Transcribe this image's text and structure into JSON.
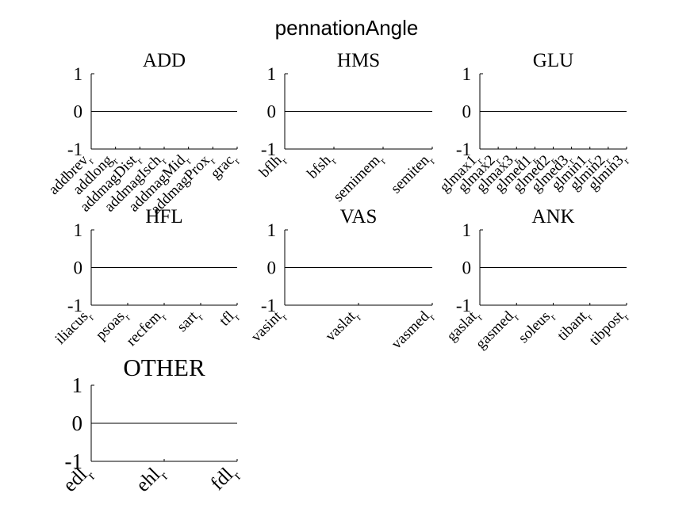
{
  "figure_title": "pennationAngle",
  "chart_data": [
    {
      "type": "line",
      "title": "ADD",
      "categories": [
        "addbrev_r",
        "addlong_r",
        "addmagDist_r",
        "addmagIsch_r",
        "addmagMid_r",
        "addmagProx_r",
        "grac_r"
      ],
      "values": [
        0,
        0,
        0,
        0,
        0,
        0,
        0
      ],
      "ylim": [
        -1,
        1
      ],
      "yticks": [
        "1",
        "0",
        "-1"
      ]
    },
    {
      "type": "line",
      "title": "HMS",
      "categories": [
        "bflh_r",
        "bfsh_r",
        "semimem_r",
        "semiten_r"
      ],
      "values": [
        0,
        0,
        0,
        0
      ],
      "ylim": [
        -1,
        1
      ],
      "yticks": [
        "1",
        "0",
        "-1"
      ]
    },
    {
      "type": "line",
      "title": "GLU",
      "categories": [
        "glmax1_r",
        "glmax2_r",
        "glmax3_r",
        "glmed1_r",
        "glmed2_r",
        "glmed3_r",
        "glmin1_r",
        "glmin2_r",
        "glmin3_r"
      ],
      "values": [
        0,
        0,
        0,
        0,
        0,
        0,
        0,
        0,
        0
      ],
      "ylim": [
        -1,
        1
      ],
      "yticks": [
        "1",
        "0",
        "-1"
      ]
    },
    {
      "type": "line",
      "title": "HFL",
      "categories": [
        "iliacus_r",
        "psoas_r",
        "recfem_r",
        "sart_r",
        "tfl_r"
      ],
      "values": [
        0,
        0,
        0,
        0,
        0
      ],
      "ylim": [
        -1,
        1
      ],
      "yticks": [
        "1",
        "0",
        "-1"
      ]
    },
    {
      "type": "line",
      "title": "VAS",
      "categories": [
        "vasint_r",
        "vaslat_r",
        "vasmed_r"
      ],
      "values": [
        0,
        0,
        0
      ],
      "ylim": [
        -1,
        1
      ],
      "yticks": [
        "1",
        "0",
        "-1"
      ]
    },
    {
      "type": "line",
      "title": "ANK",
      "categories": [
        "gaslat_r",
        "gasmed_r",
        "soleus_r",
        "tibant_r",
        "tibpost_r"
      ],
      "values": [
        0,
        0,
        0,
        0,
        0
      ],
      "ylim": [
        -1,
        1
      ],
      "yticks": [
        "1",
        "0",
        "-1"
      ]
    },
    {
      "type": "line",
      "title": "OTHER",
      "categories": [
        "edl_r",
        "ehl_r",
        "fdl_r"
      ],
      "values": [
        0,
        0,
        0
      ],
      "ylim": [
        -1,
        1
      ],
      "yticks": [
        "1",
        "0",
        "-1"
      ]
    }
  ]
}
